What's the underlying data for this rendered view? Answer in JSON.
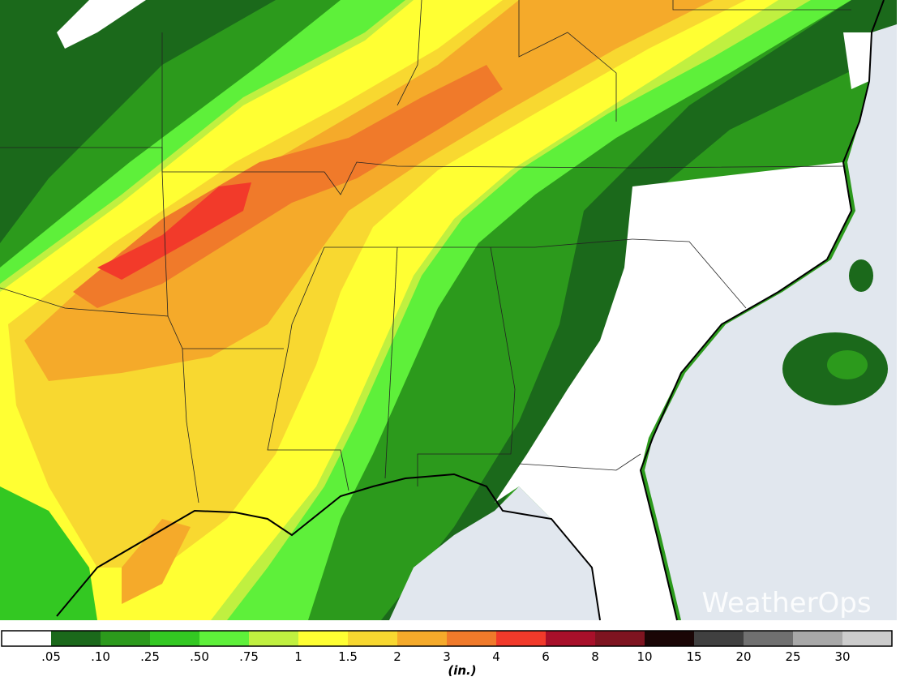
{
  "brand": "WeatherOps",
  "legend": {
    "labels": [
      ".05",
      ".10",
      ".25",
      ".50",
      ".75",
      "1",
      "1.5",
      "2",
      "3",
      "4",
      "6",
      "8",
      "10",
      "15",
      "20",
      "25",
      "30"
    ],
    "colors": [
      "#ffffff",
      "#1b691b",
      "#2c9a1c",
      "#33c822",
      "#5ef03a",
      "#c0f040",
      "#ffff33",
      "#f8d830",
      "#f5aa2a",
      "#f07a2a",
      "#f23a2a",
      "#a8102a",
      "#7e1420",
      "#1a0606",
      "#404040",
      "#707070",
      "#a8a8a8",
      "#cccccc"
    ],
    "unit": "(in.)"
  }
}
